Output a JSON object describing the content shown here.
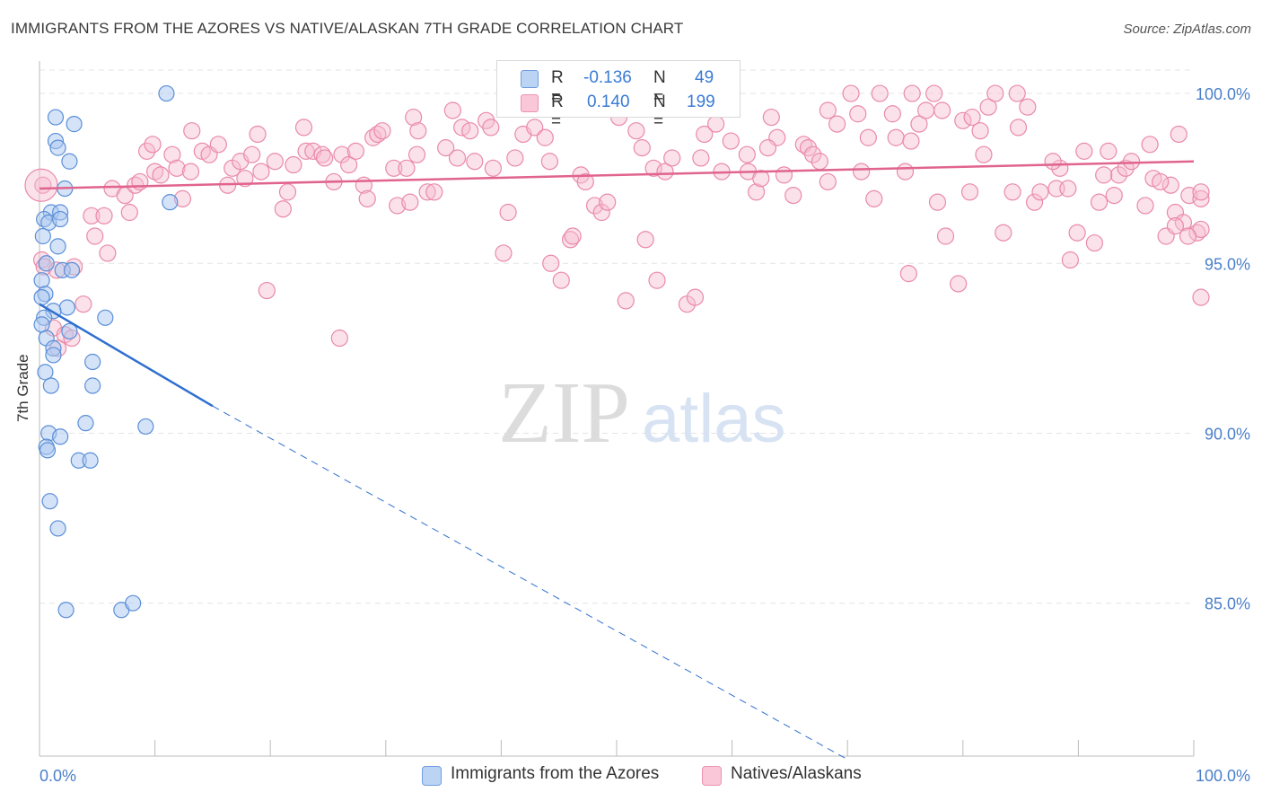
{
  "title": "IMMIGRANTS FROM THE AZORES VS NATIVE/ALASKAN 7TH GRADE CORRELATION CHART",
  "source": "Source: ZipAtlas.com",
  "watermark": {
    "zip": "ZIP",
    "atlas": "atlas"
  },
  "legend": {
    "series1": {
      "r_label": "R =",
      "r_value": "-0.136",
      "n_label": "N =",
      "n_value": "49"
    },
    "series2": {
      "r_label": "R =",
      "r_value": "0.140",
      "n_label": "N =",
      "n_value": "199"
    }
  },
  "bottom_legend": {
    "series1": "Immigrants from the Azores",
    "series2": "Natives/Alaskans"
  },
  "colors": {
    "blue_fill": "#a9c8f0",
    "blue_stroke": "#5b8fd8",
    "blue_line": "#2f6fcf",
    "pink_fill": "#f6bdd0",
    "pink_stroke": "#e98aa9",
    "pink_line": "#e0648e",
    "tick_label": "#4a7fc9",
    "grid": "#e4e4e4"
  },
  "chart_data": {
    "type": "scatter",
    "title": "IMMIGRANTS FROM THE AZORES VS NATIVE/ALASKAN 7TH GRADE CORRELATION CHART",
    "xlabel": "",
    "ylabel": "7th Grade",
    "xlim": [
      0,
      100
    ],
    "ylim": [
      80.5,
      100.9
    ],
    "x_tick_labels": [
      "0.0%",
      "100.0%"
    ],
    "y_ticks": [
      85,
      90,
      95,
      100
    ],
    "y_tick_labels": [
      "85.0%",
      "90.0%",
      "95.0%",
      "100.0%"
    ],
    "grid": true,
    "series": [
      {
        "name": "Immigrants from the Azores",
        "color": "blue",
        "trend": {
          "x": [
            0,
            15
          ],
          "y": [
            93.8,
            90.8
          ],
          "dashed_extension_to": [
            70,
            80.4
          ]
        },
        "points": [
          [
            11,
            100
          ],
          [
            1.4,
            99.3
          ],
          [
            3,
            99.1
          ],
          [
            1.4,
            98.6
          ],
          [
            1.6,
            98.4
          ],
          [
            2.6,
            98
          ],
          [
            2.2,
            97.2
          ],
          [
            11.3,
            96.8
          ],
          [
            1,
            96.5
          ],
          [
            1.8,
            96.5
          ],
          [
            0.4,
            96.3
          ],
          [
            0.8,
            96.2
          ],
          [
            1.8,
            96.3
          ],
          [
            0.3,
            95.8
          ],
          [
            1.6,
            95.5
          ],
          [
            0.6,
            95
          ],
          [
            2,
            94.8
          ],
          [
            2.8,
            94.8
          ],
          [
            0.2,
            94.5
          ],
          [
            0.5,
            94.1
          ],
          [
            0.2,
            94
          ],
          [
            2.4,
            93.7
          ],
          [
            1.2,
            93.6
          ],
          [
            5.7,
            93.4
          ],
          [
            0.4,
            93.4
          ],
          [
            0.2,
            93.2
          ],
          [
            2.6,
            93
          ],
          [
            0.6,
            92.8
          ],
          [
            1.2,
            92.5
          ],
          [
            1.2,
            92.3
          ],
          [
            4.6,
            92.1
          ],
          [
            0.5,
            91.8
          ],
          [
            1,
            91.4
          ],
          [
            4.6,
            91.4
          ],
          [
            4,
            90.3
          ],
          [
            9.2,
            90.2
          ],
          [
            0.8,
            90
          ],
          [
            1.8,
            89.9
          ],
          [
            0.6,
            89.6
          ],
          [
            0.7,
            89.5
          ],
          [
            3.4,
            89.2
          ],
          [
            4.4,
            89.2
          ],
          [
            0.9,
            88
          ],
          [
            1.6,
            87.2
          ],
          [
            2.3,
            84.8
          ],
          [
            7.1,
            84.8
          ],
          [
            8.1,
            85
          ]
        ]
      },
      {
        "name": "Natives/Alaskans",
        "color": "pink",
        "trend": {
          "x": [
            0,
            100
          ],
          "y": [
            97.2,
            98
          ]
        },
        "points": [
          [
            0.3,
            97.3
          ],
          [
            0.2,
            95.1
          ],
          [
            0.4,
            94.9
          ],
          [
            1.5,
            94.8
          ],
          [
            3,
            94.9
          ],
          [
            1.2,
            93.1
          ],
          [
            2.2,
            92.9
          ],
          [
            2.8,
            92.8
          ],
          [
            1.6,
            92.5
          ],
          [
            3.8,
            93.8
          ],
          [
            4.5,
            96.4
          ],
          [
            4.8,
            95.8
          ],
          [
            5.6,
            96.4
          ],
          [
            5.9,
            95.3
          ],
          [
            6.3,
            97.2
          ],
          [
            7.4,
            97
          ],
          [
            7.8,
            96.5
          ],
          [
            8.3,
            97.3
          ],
          [
            8.7,
            97.4
          ],
          [
            9.3,
            98.3
          ],
          [
            9.8,
            98.5
          ],
          [
            10,
            97.7
          ],
          [
            10.5,
            97.6
          ],
          [
            11.5,
            98.2
          ],
          [
            11.9,
            97.8
          ],
          [
            12.4,
            96.9
          ],
          [
            13.1,
            97.7
          ],
          [
            13.2,
            98.9
          ],
          [
            14.1,
            98.3
          ],
          [
            14.7,
            98.2
          ],
          [
            15.5,
            98.5
          ],
          [
            16.3,
            97.3
          ],
          [
            16.7,
            97.8
          ],
          [
            17.4,
            98
          ],
          [
            17.8,
            97.5
          ],
          [
            18.4,
            98.2
          ],
          [
            18.9,
            98.8
          ],
          [
            19.2,
            97.7
          ],
          [
            19.7,
            94.2
          ],
          [
            20.4,
            98
          ],
          [
            21.1,
            96.6
          ],
          [
            21.5,
            97.1
          ],
          [
            22,
            97.9
          ],
          [
            22.9,
            99
          ],
          [
            23.1,
            98.3
          ],
          [
            23.7,
            98.3
          ],
          [
            24.5,
            98.2
          ],
          [
            24.7,
            98.1
          ],
          [
            25.5,
            97.4
          ],
          [
            26,
            92.8
          ],
          [
            26.2,
            98.2
          ],
          [
            26.8,
            97.9
          ],
          [
            27.4,
            98.3
          ],
          [
            28.1,
            97.3
          ],
          [
            28.4,
            96.9
          ],
          [
            28.9,
            98.7
          ],
          [
            29.3,
            98.8
          ],
          [
            29.7,
            98.9
          ],
          [
            30.7,
            97.8
          ],
          [
            31,
            96.7
          ],
          [
            31.8,
            97.8
          ],
          [
            32.1,
            96.8
          ],
          [
            32.4,
            99.3
          ],
          [
            32.8,
            98.9
          ],
          [
            32.7,
            98.2
          ],
          [
            33.6,
            97.1
          ],
          [
            34.2,
            97.1
          ],
          [
            35.2,
            98.4
          ],
          [
            35.8,
            99.5
          ],
          [
            36.2,
            98.1
          ],
          [
            36.6,
            99
          ],
          [
            37.3,
            98.9
          ],
          [
            37.7,
            98
          ],
          [
            38.7,
            99.2
          ],
          [
            39.1,
            99
          ],
          [
            39.3,
            97.8
          ],
          [
            40.2,
            95.3
          ],
          [
            40.6,
            96.5
          ],
          [
            41.2,
            98.1
          ],
          [
            41.9,
            98.8
          ],
          [
            42.9,
            99
          ],
          [
            43.8,
            98.7
          ],
          [
            44.2,
            98
          ],
          [
            44.3,
            95
          ],
          [
            45.2,
            94.5
          ],
          [
            46,
            95.7
          ],
          [
            46.2,
            95.8
          ],
          [
            46.9,
            97.6
          ],
          [
            47.3,
            97.4
          ],
          [
            48.1,
            96.7
          ],
          [
            48.7,
            96.5
          ],
          [
            49.2,
            96.8
          ],
          [
            50.2,
            99.3
          ],
          [
            50.8,
            93.9
          ],
          [
            51.7,
            98.9
          ],
          [
            52.2,
            98.4
          ],
          [
            52.5,
            95.7
          ],
          [
            53.2,
            97.8
          ],
          [
            53.5,
            94.5
          ],
          [
            54.2,
            97.7
          ],
          [
            54.8,
            98.1
          ],
          [
            56.1,
            93.8
          ],
          [
            56.8,
            94
          ],
          [
            57.3,
            98.1
          ],
          [
            57.6,
            98.8
          ],
          [
            58.6,
            99.1
          ],
          [
            59.1,
            97.7
          ],
          [
            59.9,
            98.6
          ],
          [
            61.3,
            98.2
          ],
          [
            61.4,
            97.7
          ],
          [
            62.1,
            97.1
          ],
          [
            62.5,
            97.5
          ],
          [
            63.4,
            99.3
          ],
          [
            63.9,
            98.7
          ],
          [
            64.5,
            97.6
          ],
          [
            65.3,
            97
          ],
          [
            66.2,
            98.5
          ],
          [
            66.6,
            98.4
          ],
          [
            67,
            98.2
          ],
          [
            67.6,
            98
          ],
          [
            68.3,
            97.4
          ],
          [
            68.3,
            99.5
          ],
          [
            69.1,
            99.1
          ],
          [
            70.3,
            100
          ],
          [
            70.9,
            99.4
          ],
          [
            71.2,
            97.7
          ],
          [
            71.8,
            98.7
          ],
          [
            72.3,
            96.9
          ],
          [
            72.8,
            100
          ],
          [
            73.9,
            99.4
          ],
          [
            74.2,
            98.7
          ],
          [
            75,
            97.7
          ],
          [
            75.3,
            94.7
          ],
          [
            75.5,
            98.6
          ],
          [
            75.6,
            100
          ],
          [
            76.2,
            99.1
          ],
          [
            76.8,
            99.5
          ],
          [
            77.5,
            100
          ],
          [
            77.8,
            96.8
          ],
          [
            78.2,
            99.5
          ],
          [
            78.5,
            95.8
          ],
          [
            79.6,
            94.4
          ],
          [
            80,
            99.2
          ],
          [
            80.8,
            99.3
          ],
          [
            80.6,
            97.1
          ],
          [
            81.5,
            98.9
          ],
          [
            81.8,
            98.2
          ],
          [
            82.2,
            99.6
          ],
          [
            82.8,
            100
          ],
          [
            83.5,
            95.9
          ],
          [
            84.3,
            97.1
          ],
          [
            84.7,
            100
          ],
          [
            84.8,
            99
          ],
          [
            85.6,
            99.6
          ],
          [
            86.2,
            96.8
          ],
          [
            86.7,
            97.1
          ],
          [
            88.1,
            97.2
          ],
          [
            88.4,
            97.8
          ],
          [
            89.1,
            97.2
          ],
          [
            89.3,
            95.1
          ],
          [
            89.9,
            95.9
          ],
          [
            90.5,
            98.3
          ],
          [
            91.4,
            95.6
          ],
          [
            91.8,
            96.8
          ],
          [
            92.6,
            98.3
          ],
          [
            93.1,
            97
          ],
          [
            93.5,
            97.6
          ],
          [
            94.1,
            97.8
          ],
          [
            94.6,
            98
          ],
          [
            95.8,
            96.7
          ],
          [
            96.2,
            98.5
          ],
          [
            96.5,
            97.5
          ],
          [
            97.6,
            95.8
          ],
          [
            98,
            97.3
          ],
          [
            98.4,
            96.5
          ],
          [
            98.7,
            98.8
          ],
          [
            99.1,
            96.2
          ],
          [
            99.6,
            97
          ],
          [
            100.3,
            95.9
          ],
          [
            101.1,
            96
          ],
          [
            101.6,
            94
          ],
          [
            101.9,
            96.9
          ],
          [
            102,
            97.1
          ],
          [
            99.5,
            95.8
          ],
          [
            92.2,
            97.6
          ],
          [
            87.8,
            98
          ],
          [
            98.4,
            96.1
          ],
          [
            97.1,
            97.4
          ],
          [
            63.1,
            98.4
          ]
        ]
      }
    ]
  }
}
